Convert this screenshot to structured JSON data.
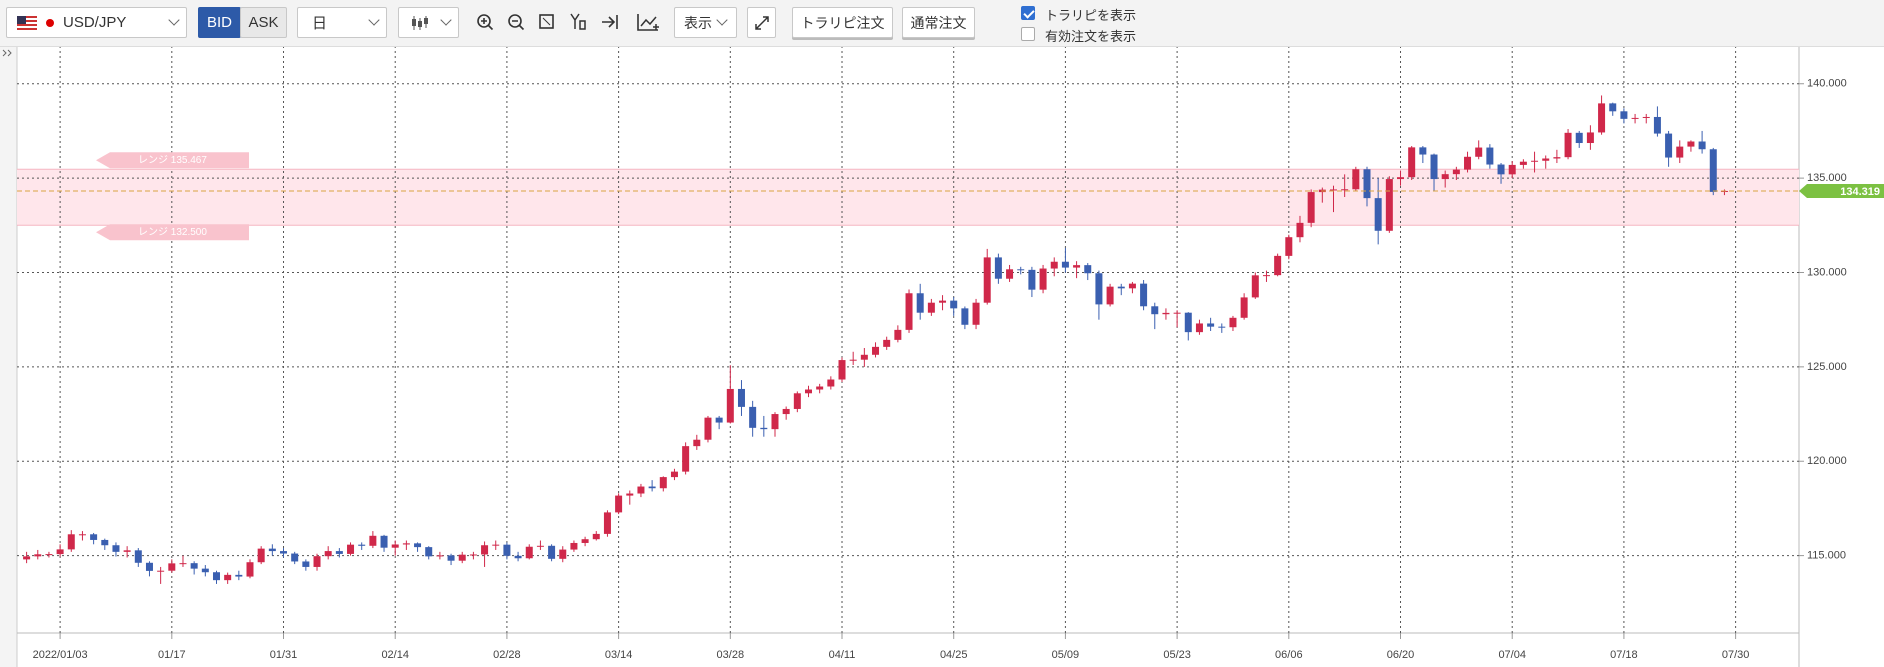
{
  "toolbar": {
    "symbol": "USD/JPY",
    "bid": "BID",
    "ask": "ASK",
    "period": "日",
    "display": "表示",
    "buttons": [
      "トラリピ注文",
      "通常注文"
    ],
    "checkboxes": [
      {
        "label": "トラリピを表示",
        "checked": true
      },
      {
        "label": "有効注文を表示",
        "checked": false
      }
    ]
  },
  "chart_data": {
    "type": "candlestick",
    "categories": [
      null,
      null,
      null,
      "2022/01/03",
      null,
      null,
      null,
      null,
      null,
      null,
      null,
      null,
      null,
      "01/17",
      null,
      null,
      null,
      null,
      null,
      null,
      null,
      null,
      null,
      "01/31",
      null,
      null,
      null,
      null,
      null,
      null,
      null,
      null,
      null,
      "02/14",
      null,
      null,
      null,
      null,
      null,
      null,
      null,
      null,
      null,
      "02/28",
      null,
      null,
      null,
      null,
      null,
      null,
      null,
      null,
      null,
      "03/14",
      null,
      null,
      null,
      null,
      null,
      null,
      null,
      null,
      null,
      "03/28",
      null,
      null,
      null,
      null,
      null,
      null,
      null,
      null,
      null,
      "04/11",
      null,
      null,
      null,
      null,
      null,
      null,
      null,
      null,
      null,
      "04/25",
      null,
      null,
      null,
      null,
      null,
      null,
      null,
      null,
      null,
      "05/09",
      null,
      null,
      null,
      null,
      null,
      null,
      null,
      null,
      null,
      "05/23",
      null,
      null,
      null,
      null,
      null,
      null,
      null,
      null,
      null,
      "06/06",
      null,
      null,
      null,
      null,
      null,
      null,
      null,
      null,
      null,
      "06/20",
      null,
      null,
      null,
      null,
      null,
      null,
      null,
      null,
      null,
      "07/04",
      null,
      null,
      null,
      null,
      null,
      null,
      null,
      null,
      null,
      "07/18",
      null,
      null,
      null,
      null,
      null,
      null,
      null,
      null,
      null,
      "07/30"
    ],
    "open": [
      114.8,
      114.96,
      115.07,
      115.08,
      115.33,
      116.13,
      116.13,
      115.83,
      115.55,
      115.2,
      115.28,
      114.62,
      114.19,
      114.2,
      114.59,
      114.6,
      114.31,
      114.12,
      113.7,
      113.98,
      113.89,
      114.65,
      115.37,
      115.24,
      115.11,
      114.69,
      114.4,
      114.97,
      115.24,
      115.09,
      115.58,
      115.52,
      116.05,
      115.42,
      115.59,
      115.65,
      115.45,
      114.96,
      115.01,
      114.73,
      115.05,
      115.06,
      115.55,
      115.58,
      114.99,
      114.86,
      115.47,
      115.52,
      114.83,
      115.32,
      115.67,
      115.87,
      116.15,
      117.29,
      118.18,
      118.29,
      118.66,
      118.57,
      119.16,
      119.45,
      120.8,
      121.14,
      122.31,
      122.05,
      123.83,
      122.88,
      121.77,
      121.7,
      122.5,
      122.77,
      123.6,
      123.8,
      123.96,
      124.33,
      125.36,
      125.38,
      125.64,
      126.06,
      126.43,
      126.96,
      128.9,
      127.87,
      128.4,
      128.51,
      128.1,
      127.23,
      128.4,
      130.8,
      129.67,
      130.17,
      130.14,
      129.09,
      130.21,
      130.57,
      130.26,
      130.39,
      129.96,
      128.31,
      129.25,
      129.16,
      129.41,
      128.21,
      127.79,
      127.86,
      127.87,
      126.84,
      127.3,
      127.13,
      127.1,
      127.6,
      128.68,
      129.85,
      129.86,
      130.88,
      131.87,
      132.63,
      134.26,
      134.39,
      134.4,
      134.41,
      135.47,
      133.94,
      132.21,
      134.95,
      135.05,
      136.63,
      136.25,
      134.95,
      135.21,
      135.45,
      136.13,
      136.62,
      135.72,
      135.2,
      135.7,
      135.87,
      135.92,
      136.04,
      136.11,
      137.4,
      136.86,
      137.42,
      138.96,
      138.54,
      138.14,
      138.19,
      138.24,
      137.36,
      136.09,
      136.67,
      136.94,
      136.53,
      134.27,
      null
    ],
    "high": [
      115.2,
      115.3,
      115.2,
      115.6,
      116.35,
      116.3,
      116.2,
      115.9,
      115.7,
      115.5,
      115.4,
      114.7,
      114.4,
      114.8,
      115.0,
      114.7,
      114.5,
      114.2,
      114.1,
      114.2,
      114.8,
      115.5,
      115.6,
      115.4,
      115.2,
      114.8,
      115.1,
      115.5,
      115.4,
      115.7,
      115.7,
      116.3,
      116.1,
      115.8,
      115.8,
      115.7,
      115.5,
      115.2,
      115.1,
      115.2,
      115.2,
      115.75,
      115.8,
      115.7,
      115.2,
      115.6,
      115.8,
      115.6,
      115.5,
      115.8,
      116.0,
      116.3,
      117.4,
      118.3,
      118.45,
      118.8,
      119.0,
      119.2,
      119.6,
      121.0,
      121.4,
      122.4,
      122.4,
      125.09,
      124.3,
      123.2,
      122.4,
      122.6,
      122.9,
      123.7,
      124.0,
      124.1,
      124.5,
      125.5,
      125.8,
      126.0,
      126.3,
      126.6,
      127.2,
      129.1,
      129.4,
      128.6,
      128.8,
      128.7,
      128.2,
      128.6,
      131.25,
      131.0,
      130.4,
      130.3,
      130.3,
      130.4,
      130.8,
      131.3,
      130.6,
      130.5,
      130.1,
      129.4,
      129.4,
      129.5,
      129.6,
      128.4,
      128.1,
      128.0,
      127.9,
      127.5,
      127.6,
      127.3,
      127.7,
      128.9,
      130.0,
      130.1,
      131.0,
      132.0,
      133.0,
      134.4,
      134.5,
      134.6,
      135.2,
      135.6,
      135.6,
      135.0,
      135.1,
      135.4,
      136.7,
      136.7,
      136.3,
      135.4,
      135.6,
      136.4,
      137.0,
      136.8,
      135.8,
      135.9,
      136.0,
      136.4,
      136.2,
      136.5,
      137.6,
      137.5,
      137.8,
      139.38,
      139.0,
      138.7,
      138.4,
      138.4,
      138.8,
      137.5,
      137.0,
      137.0,
      137.5,
      136.6,
      134.4,
      null
    ],
    "low": [
      114.6,
      114.8,
      114.9,
      114.95,
      115.2,
      115.8,
      115.6,
      115.3,
      114.95,
      114.9,
      114.4,
      113.9,
      113.5,
      114.1,
      114.4,
      114.0,
      113.9,
      113.5,
      113.5,
      113.7,
      113.8,
      114.55,
      115.0,
      114.9,
      114.55,
      114.2,
      114.2,
      114.8,
      114.9,
      115.0,
      115.3,
      115.4,
      115.2,
      115.0,
      115.3,
      115.2,
      114.8,
      114.8,
      114.5,
      114.6,
      114.8,
      114.4,
      115.3,
      114.8,
      114.7,
      114.8,
      115.3,
      114.7,
      114.65,
      115.2,
      115.5,
      115.8,
      116.0,
      117.2,
      117.7,
      118.1,
      118.4,
      118.4,
      119.0,
      119.3,
      120.6,
      121.0,
      121.7,
      122.0,
      122.4,
      121.3,
      121.3,
      121.3,
      122.2,
      122.6,
      123.4,
      123.6,
      123.8,
      124.2,
      125.1,
      125.0,
      125.5,
      125.9,
      126.3,
      126.8,
      127.5,
      127.7,
      128.0,
      127.7,
      127.0,
      127.0,
      128.3,
      129.4,
      129.5,
      129.9,
      128.7,
      128.9,
      129.8,
      130.0,
      129.7,
      129.6,
      127.5,
      128.2,
      128.8,
      128.9,
      128.0,
      127.0,
      127.5,
      127.1,
      126.4,
      126.7,
      126.9,
      126.8,
      126.9,
      127.5,
      128.6,
      129.5,
      129.8,
      130.7,
      131.6,
      132.4,
      133.7,
      133.2,
      134.0,
      134.3,
      133.5,
      131.49,
      132.1,
      134.6,
      134.9,
      135.8,
      134.3,
      134.5,
      134.9,
      135.3,
      136.0,
      135.5,
      134.7,
      135.0,
      135.5,
      135.3,
      135.5,
      135.8,
      136.0,
      136.6,
      136.5,
      137.3,
      138.3,
      137.9,
      137.9,
      137.9,
      137.2,
      135.6,
      135.8,
      136.4,
      136.3,
      134.1,
      134.1,
      null
    ],
    "close": [
      114.96,
      115.07,
      115.08,
      115.33,
      116.13,
      116.13,
      115.83,
      115.55,
      115.2,
      115.28,
      114.62,
      114.19,
      114.2,
      114.59,
      114.6,
      114.31,
      114.12,
      113.7,
      113.98,
      113.89,
      114.65,
      115.37,
      115.24,
      115.11,
      114.69,
      114.4,
      114.97,
      115.24,
      115.09,
      115.58,
      115.52,
      116.05,
      115.42,
      115.59,
      115.65,
      115.45,
      114.96,
      115.01,
      114.73,
      115.05,
      115.06,
      115.55,
      115.58,
      114.99,
      114.86,
      115.47,
      115.52,
      114.83,
      115.32,
      115.67,
      115.87,
      116.15,
      117.29,
      118.18,
      118.29,
      118.66,
      118.57,
      119.16,
      119.45,
      120.8,
      121.14,
      122.31,
      122.05,
      123.83,
      122.88,
      121.77,
      121.7,
      122.5,
      122.77,
      123.6,
      123.8,
      123.96,
      124.33,
      125.36,
      125.38,
      125.64,
      126.06,
      126.43,
      126.96,
      128.9,
      127.87,
      128.4,
      128.51,
      128.1,
      127.23,
      128.4,
      130.8,
      129.67,
      130.17,
      130.14,
      129.09,
      130.21,
      130.57,
      130.26,
      130.39,
      129.96,
      128.31,
      129.25,
      129.16,
      129.41,
      128.21,
      127.79,
      127.86,
      127.87,
      126.84,
      127.3,
      127.13,
      127.1,
      127.6,
      128.68,
      129.85,
      129.86,
      130.88,
      131.87,
      132.63,
      134.26,
      134.39,
      134.4,
      134.41,
      135.47,
      133.94,
      132.21,
      134.95,
      135.05,
      136.63,
      136.25,
      134.95,
      135.21,
      135.45,
      136.13,
      136.62,
      135.72,
      135.2,
      135.7,
      135.87,
      135.92,
      136.04,
      136.11,
      137.4,
      136.86,
      137.42,
      138.96,
      138.54,
      138.14,
      138.19,
      138.24,
      137.36,
      136.09,
      136.67,
      136.94,
      136.53,
      134.27,
      134.32,
      null
    ],
    "up_color": "#d0284a",
    "down_color": "#3a5fb0",
    "ylim": [
      110.9,
      142.0
    ],
    "yticks": [
      {
        "value": 115,
        "label": "115.000"
      },
      {
        "value": 120,
        "label": "120.000"
      },
      {
        "value": 125,
        "label": "125.000"
      },
      {
        "value": 130,
        "label": "130.000"
      },
      {
        "value": 135,
        "label": "135.000"
      },
      {
        "value": 140,
        "label": "140.000"
      }
    ],
    "grid": true,
    "range": {
      "upper": 135.467,
      "upper_label": "レンジ 135.467",
      "lower": 132.5,
      "lower_label": "レンジ 132.500"
    },
    "current_price": 134.319
  }
}
